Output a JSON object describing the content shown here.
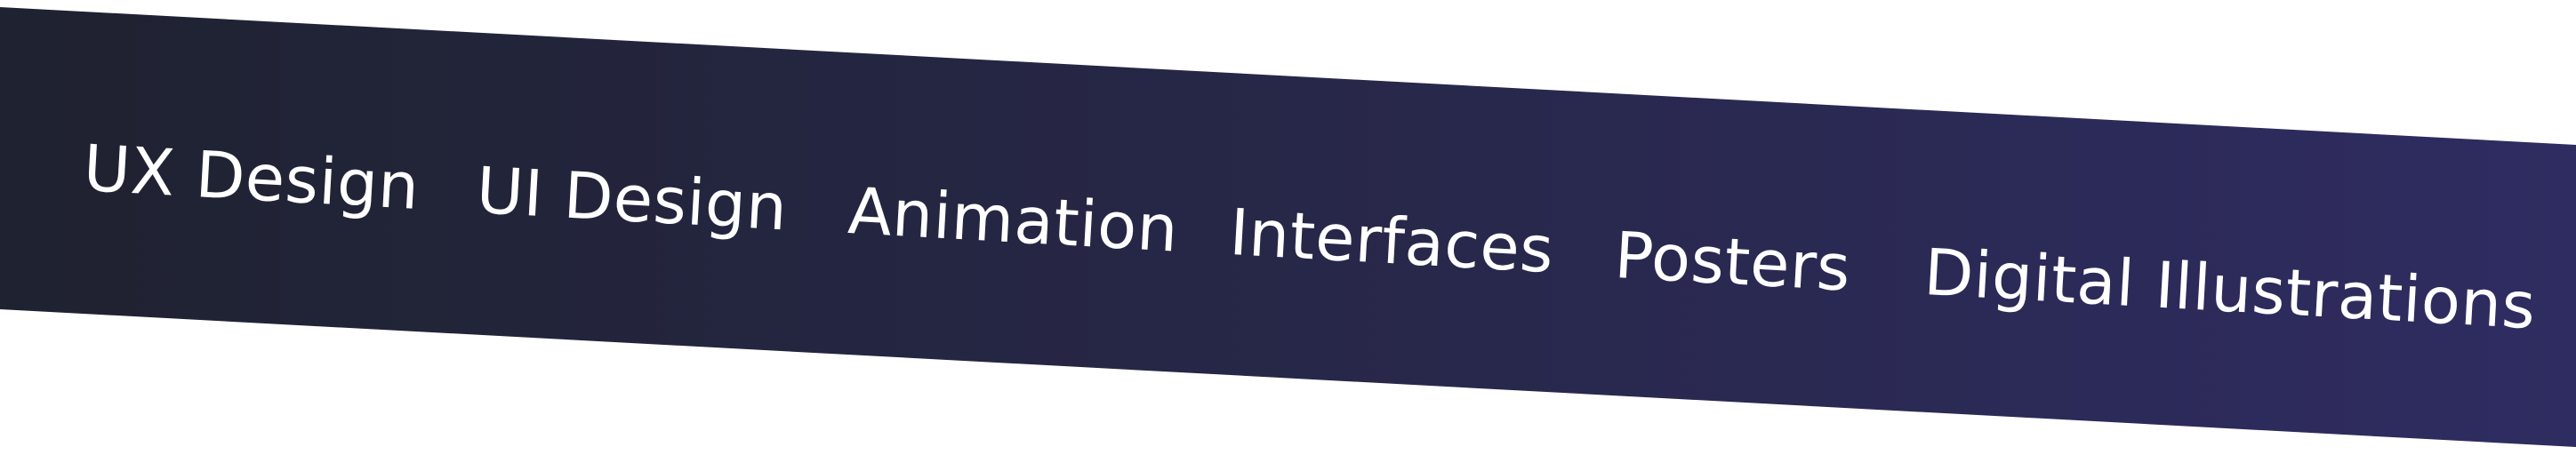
{
  "banner": {
    "gradient_start": "#1f2230",
    "gradient_end": "#2f2c61",
    "text_color": "#ffffff",
    "items": [
      {
        "label": "UX Design"
      },
      {
        "label": "UI Design"
      },
      {
        "label": "Animation"
      },
      {
        "label": "Interfaces"
      },
      {
        "label": "Posters"
      },
      {
        "label": "Digital Illustrations"
      }
    ]
  }
}
